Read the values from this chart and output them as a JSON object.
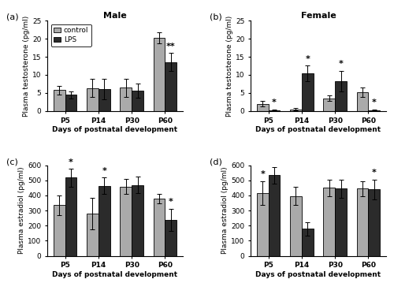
{
  "panels": [
    {
      "label": "(a)",
      "title": "Male",
      "ylabel": "Plasma testosterone (pg/ml)",
      "ylim": [
        0,
        25
      ],
      "yticks": [
        0,
        5,
        10,
        15,
        20,
        25
      ],
      "categories": [
        "P5",
        "P14",
        "P30",
        "P60"
      ],
      "control_means": [
        5.8,
        6.3,
        6.4,
        20.3
      ],
      "control_errors": [
        1.2,
        2.5,
        2.5,
        1.5
      ],
      "lps_means": [
        4.5,
        6.1,
        5.6,
        13.5
      ],
      "lps_errors": [
        1.0,
        2.8,
        2.0,
        2.5
      ],
      "sig_control": [],
      "sig_control_marker": [],
      "sig_lps": [
        "P60"
      ],
      "sig_lps_marker": [
        "**"
      ],
      "show_legend": true
    },
    {
      "label": "(b)",
      "title": "Female",
      "ylabel": "Plasma testosterone (pg/ml)",
      "ylim": [
        0,
        25
      ],
      "yticks": [
        0,
        5,
        10,
        15,
        20,
        25
      ],
      "categories": [
        "P5",
        "P14",
        "P30",
        "P60"
      ],
      "control_means": [
        2.0,
        0.5,
        3.5,
        5.2
      ],
      "control_errors": [
        0.8,
        0.3,
        0.8,
        1.3
      ],
      "lps_means": [
        0.3,
        10.4,
        8.3,
        0.3
      ],
      "lps_errors": [
        0.2,
        2.2,
        2.8,
        0.2
      ],
      "sig_control": [],
      "sig_control_marker": [],
      "sig_lps": [
        "P5",
        "P14",
        "P30",
        "P60"
      ],
      "sig_lps_marker": [
        "*",
        "*",
        "*",
        "*"
      ],
      "show_legend": false
    },
    {
      "label": "(c)",
      "title": "",
      "ylabel": "Plasma estradiol (pg/ml)",
      "ylim": [
        0,
        600
      ],
      "yticks": [
        0,
        100,
        200,
        300,
        400,
        500,
        600
      ],
      "categories": [
        "P5",
        "P14",
        "P30",
        "P60"
      ],
      "control_means": [
        335,
        278,
        460,
        378
      ],
      "control_errors": [
        65,
        105,
        50,
        30
      ],
      "lps_means": [
        518,
        465,
        470,
        238
      ],
      "lps_errors": [
        60,
        55,
        55,
        75
      ],
      "sig_control": [],
      "sig_control_marker": [],
      "sig_lps": [
        "P5",
        "P14",
        "P60"
      ],
      "sig_lps_marker": [
        "*",
        "*",
        "*"
      ],
      "show_legend": false
    },
    {
      "label": "(d)",
      "title": "",
      "ylabel": "Plasma estradiol (pg/ml)",
      "ylim": [
        0,
        600
      ],
      "yticks": [
        0,
        100,
        200,
        300,
        400,
        500,
        600
      ],
      "categories": [
        "P5",
        "P14",
        "P30",
        "P60"
      ],
      "control_means": [
        415,
        395,
        450,
        445
      ],
      "control_errors": [
        80,
        60,
        55,
        50
      ],
      "lps_means": [
        535,
        178,
        445,
        440
      ],
      "lps_errors": [
        55,
        45,
        60,
        65
      ],
      "sig_control": [
        "P5"
      ],
      "sig_control_marker": [
        "*"
      ],
      "sig_lps": [
        "P60"
      ],
      "sig_lps_marker": [
        "*"
      ],
      "show_legend": false
    }
  ],
  "color_control": "#aaaaaa",
  "color_lps": "#2b2b2b",
  "bar_width": 0.35,
  "xlabel": "Days of postnatal development",
  "capsize": 2,
  "fontsize_title": 8,
  "fontsize_label": 6.5,
  "fontsize_tick": 6.5,
  "fontsize_legend": 6.5,
  "fontsize_panel": 8,
  "fontsize_sig": 8
}
